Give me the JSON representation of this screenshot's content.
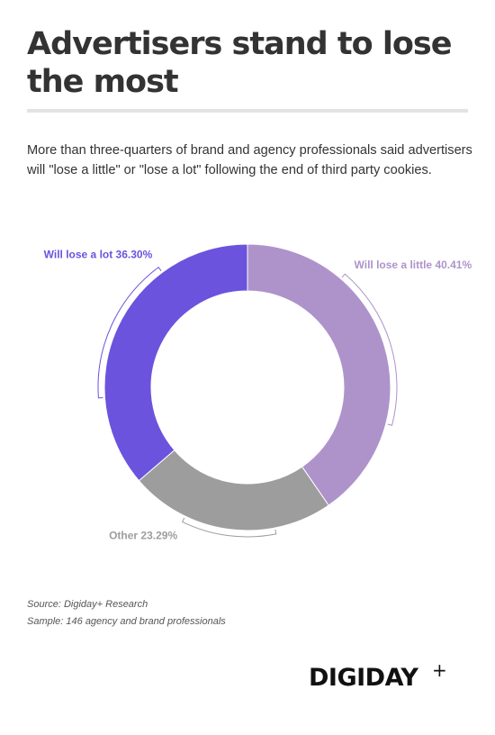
{
  "header": {
    "title": "Advertisers stand to lose the most",
    "subtitle": "More than three-quarters of brand and agency professionals said advertisers will \"lose a little\" or \"lose a lot\" following the end of third party cookies."
  },
  "chart_data": {
    "type": "pie",
    "donut": true,
    "categories": [
      "Will lose a little",
      "Other",
      "Will lose a lot"
    ],
    "values": [
      40.41,
      23.29,
      36.3
    ],
    "labels": [
      "Will lose a little 40.41%",
      "Other 23.29%",
      "Will lose a lot 36.30%"
    ],
    "colors": [
      "#ae93cb",
      "#9d9d9d",
      "#6b53de"
    ],
    "start": "12 o'clock, clockwise"
  },
  "footer": {
    "source": "Source: Digiday+ Research",
    "sample": "Sample: 146 agency and brand professionals",
    "brand": "DIGIDAY",
    "brand_plus": "+"
  }
}
